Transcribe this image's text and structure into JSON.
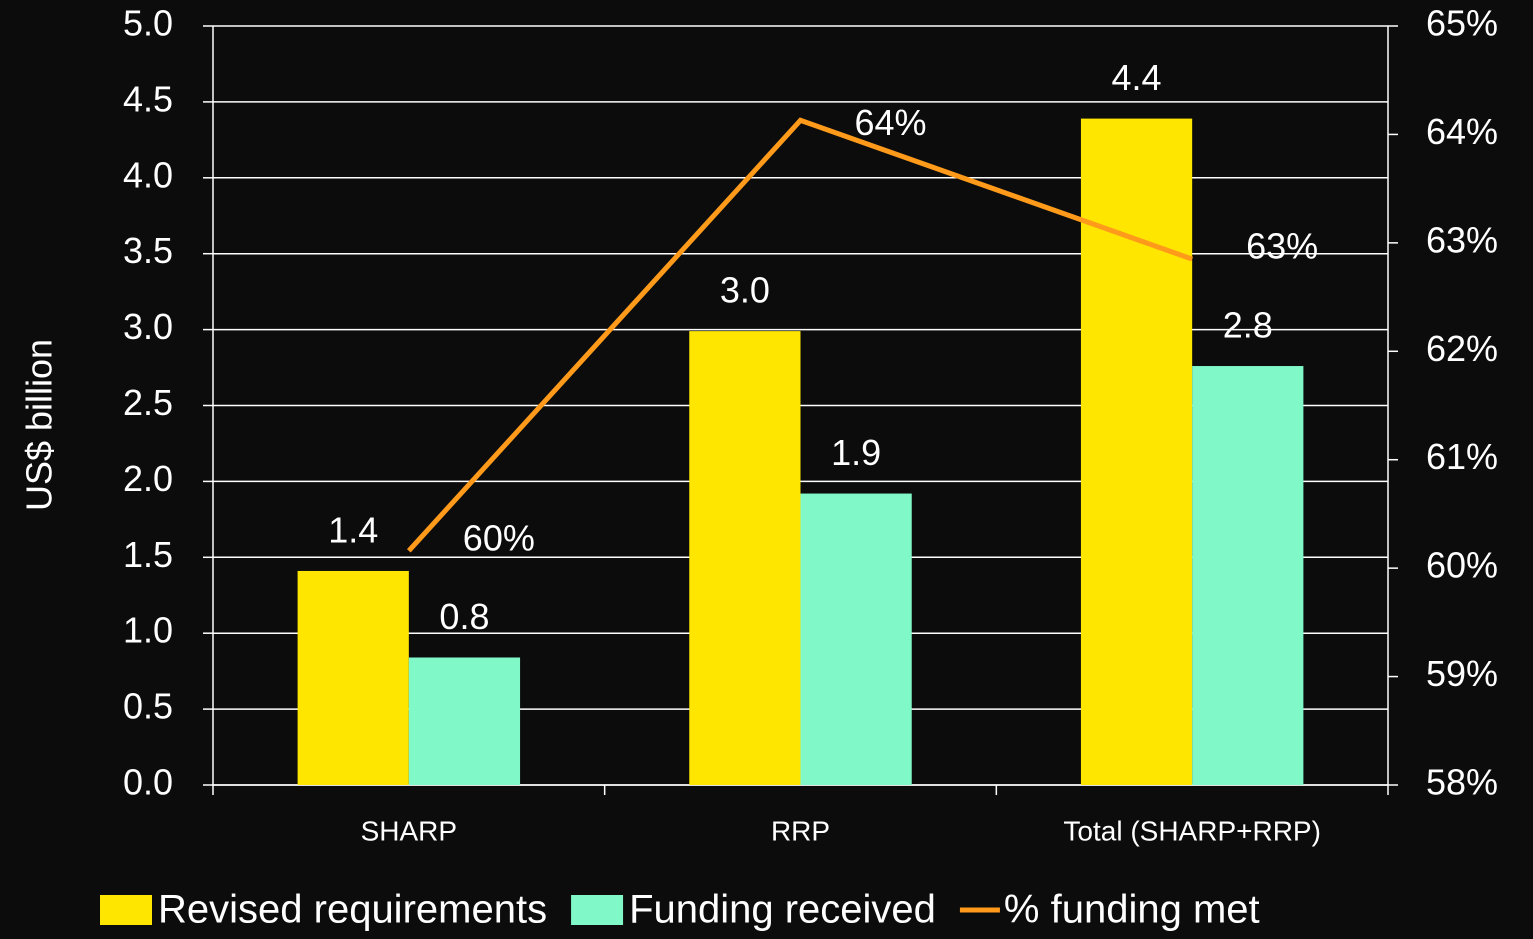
{
  "chart_data": {
    "type": "bar",
    "categories": [
      "SHARP",
      "RRP",
      "Total (SHARP+RRP)"
    ],
    "y_label": "US$ billion",
    "series": [
      {
        "name": "Revised requirements",
        "color": "#ffe600",
        "values": [
          1.41,
          2.99,
          4.39
        ],
        "value_labels": [
          "1.4",
          "3.0",
          "4.4"
        ]
      },
      {
        "name": "Funding received",
        "color": "#80f8c8",
        "values": [
          0.84,
          1.92,
          2.76
        ],
        "value_labels": [
          "0.8",
          "1.9",
          "2.8"
        ]
      },
      {
        "name": "% funding met",
        "type": "line",
        "axis": "y2",
        "color": "#ff9a1a",
        "values": [
          60.16,
          64.13,
          62.85
        ],
        "value_labels": [
          "60%",
          "64%",
          "63%"
        ]
      }
    ],
    "ylim": [
      0,
      5
    ],
    "yticks": [
      {
        "value": 0,
        "label": "0.0"
      },
      0.5,
      {
        "value": 1,
        "label": "1.0"
      },
      1.5,
      {
        "value": 2,
        "label": "2.0"
      },
      2.5,
      {
        "value": 3,
        "label": "3.0"
      },
      3.5,
      {
        "value": 4,
        "label": "4.0"
      },
      4.5,
      {
        "value": 5,
        "label": "5.0"
      }
    ],
    "y2lim": [
      58,
      65
    ],
    "y2ticks": [
      {
        "value": 58,
        "label": "58%"
      },
      {
        "value": 59,
        "label": "59%"
      },
      {
        "value": 60,
        "label": "60%"
      },
      {
        "value": 61,
        "label": "61%"
      },
      {
        "value": 62,
        "label": "62%"
      },
      {
        "value": 63,
        "label": "63%"
      },
      {
        "value": 64,
        "label": "64%"
      },
      {
        "value": 65,
        "label": "65%"
      }
    ],
    "grid": true,
    "legend": "bottom"
  }
}
